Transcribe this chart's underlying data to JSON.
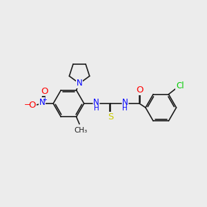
{
  "background_color": "#ececec",
  "bond_color": "#1a1a1a",
  "atom_colors": {
    "N": "#0000ff",
    "O": "#ff0000",
    "S": "#cccc00",
    "Cl": "#00cc00",
    "C": "#1a1a1a",
    "H": "#1a1a1a"
  },
  "figsize": [
    3.0,
    3.0
  ],
  "dpi": 100
}
